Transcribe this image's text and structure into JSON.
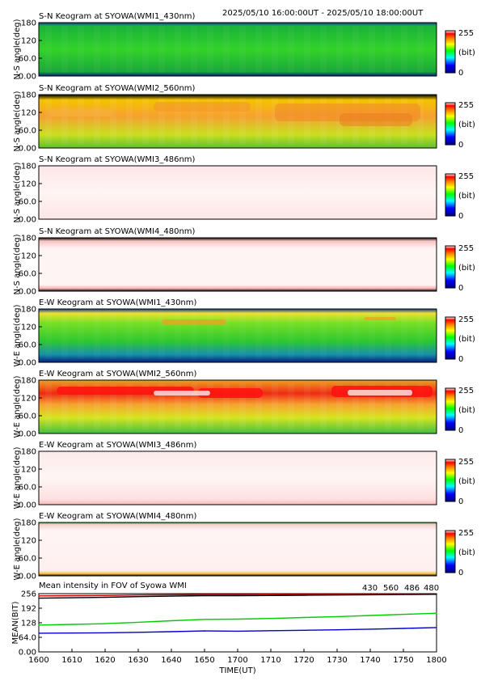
{
  "header": {
    "time_range": "2025/05/10 16:00:00UT - 2025/05/10 18:00:00UT"
  },
  "colors": {
    "line_430": "#0000cc",
    "line_560": "#00cc00",
    "line_486": "#cc0000",
    "line_480": "#000000"
  },
  "panels": [
    {
      "title": "S-N Keogram at SYOWA(WMI1_430nm)",
      "ylabel": "N-S angle(deg)",
      "yticks": [
        "180",
        "120",
        "60.0",
        "0.00"
      ],
      "cb_max": "255",
      "cb_unit": "(bit)",
      "cb_min": "0"
    },
    {
      "title": "S-N Keogram at SYOWA(WMI2_560nm)",
      "ylabel": "N-S angle(deg)",
      "yticks": [
        "180",
        "120",
        "60.0",
        "0.00"
      ],
      "cb_max": "255",
      "cb_unit": "(bit)",
      "cb_min": "0"
    },
    {
      "title": "S-N Keogram at SYOWA(WMI3_486nm)",
      "ylabel": "N-S angle(deg)",
      "yticks": [
        "180",
        "120",
        "60.0",
        "0.00"
      ],
      "cb_max": "255",
      "cb_unit": "(bit)",
      "cb_min": "0"
    },
    {
      "title": "S-N Keogram at SYOWA(WMI4_480nm)",
      "ylabel": "N-S angle(deg)",
      "yticks": [
        "180",
        "120",
        "60.0",
        "0.00"
      ],
      "cb_max": "255",
      "cb_unit": "(bit)",
      "cb_min": "0"
    },
    {
      "title": "E-W Keogram at SYOWA(WMI1_430nm)",
      "ylabel": "W-E angle(deg)",
      "yticks": [
        "180",
        "120",
        "60.0",
        "0.00"
      ],
      "cb_max": "255",
      "cb_unit": "(bit)",
      "cb_min": "0"
    },
    {
      "title": "E-W Keogram at SYOWA(WMI2_560nm)",
      "ylabel": "W-E angle(deg)",
      "yticks": [
        "180",
        "120",
        "60.0",
        "0.00"
      ],
      "cb_max": "255",
      "cb_unit": "(bit)",
      "cb_min": "0"
    },
    {
      "title": "E-W Keogram at SYOWA(WMI3_486nm)",
      "ylabel": "W-E angle(deg)",
      "yticks": [
        "180",
        "120",
        "60.0",
        "0.00"
      ],
      "cb_max": "255",
      "cb_unit": "(bit)",
      "cb_min": "0"
    },
    {
      "title": "E-W Keogram at SYOWA(WMI4_480nm)",
      "ylabel": "W-E angle(deg)",
      "yticks": [
        "180",
        "120",
        "60.0",
        "0.00"
      ],
      "cb_max": "255",
      "cb_unit": "(bit)",
      "cb_min": "0"
    }
  ],
  "mean_panel": {
    "title": "Mean intensity in FOV of Syowa WMI",
    "ylabel": "MEAN(BIT)",
    "yticks": [
      "256",
      "192",
      "128",
      "64.0",
      "0.00"
    ],
    "legend": [
      "430",
      "560",
      "486",
      "480"
    ]
  },
  "xaxis": {
    "label": "TIME(UT)",
    "ticks": [
      "1600",
      "1610",
      "1620",
      "1630",
      "1640",
      "1650",
      "1700",
      "1710",
      "1720",
      "1730",
      "1740",
      "1750",
      "1800"
    ]
  },
  "chart_data": [
    {
      "type": "heatmap",
      "title": "S-N Keogram at SYOWA(WMI1_430nm)",
      "x_range": [
        "1600",
        "1800"
      ],
      "ylim": [
        0,
        180
      ],
      "zlim": [
        0,
        255
      ],
      "typical_intensity": 95
    },
    {
      "type": "heatmap",
      "title": "S-N Keogram at SYOWA(WMI2_560nm)",
      "x_range": [
        "1600",
        "1800"
      ],
      "ylim": [
        0,
        180
      ],
      "zlim": [
        0,
        255
      ],
      "typical_intensity": 175
    },
    {
      "type": "heatmap",
      "title": "S-N Keogram at SYOWA(WMI3_486nm)",
      "x_range": [
        "1600",
        "1800"
      ],
      "ylim": [
        0,
        180
      ],
      "zlim": [
        0,
        255
      ],
      "typical_intensity": 250
    },
    {
      "type": "heatmap",
      "title": "S-N Keogram at SYOWA(WMI4_480nm)",
      "x_range": [
        "1600",
        "1800"
      ],
      "ylim": [
        0,
        180
      ],
      "zlim": [
        0,
        255
      ],
      "typical_intensity": 252
    },
    {
      "type": "heatmap",
      "title": "E-W Keogram at SYOWA(WMI1_430nm)",
      "x_range": [
        "1600",
        "1800"
      ],
      "ylim": [
        0,
        180
      ],
      "zlim": [
        0,
        255
      ],
      "typical_intensity": 100
    },
    {
      "type": "heatmap",
      "title": "E-W Keogram at SYOWA(WMI2_560nm)",
      "x_range": [
        "1600",
        "1800"
      ],
      "ylim": [
        0,
        180
      ],
      "zlim": [
        0,
        255
      ],
      "typical_intensity": 185
    },
    {
      "type": "heatmap",
      "title": "E-W Keogram at SYOWA(WMI3_486nm)",
      "x_range": [
        "1600",
        "1800"
      ],
      "ylim": [
        0,
        180
      ],
      "zlim": [
        0,
        255
      ],
      "typical_intensity": 250
    },
    {
      "type": "heatmap",
      "title": "E-W Keogram at SYOWA(WMI4_480nm)",
      "x_range": [
        "1600",
        "1800"
      ],
      "ylim": [
        0,
        180
      ],
      "zlim": [
        0,
        255
      ],
      "typical_intensity": 252
    },
    {
      "type": "line",
      "title": "Mean intensity in FOV of Syowa WMI",
      "xlabel": "TIME(UT)",
      "ylabel": "MEAN(BIT)",
      "ylim": [
        0,
        256
      ],
      "x": [
        1600,
        1610,
        1620,
        1630,
        1640,
        1650,
        1700,
        1710,
        1720,
        1730,
        1740,
        1750,
        1800
      ],
      "series": [
        {
          "name": "430",
          "color": "#0000cc",
          "values": [
            82,
            83,
            84,
            86,
            89,
            92,
            91,
            93,
            95,
            97,
            100,
            103,
            107
          ]
        },
        {
          "name": "560",
          "color": "#00cc00",
          "values": [
            118,
            121,
            124,
            130,
            137,
            143,
            144,
            147,
            151,
            155,
            160,
            165,
            170
          ]
        },
        {
          "name": "486",
          "color": "#cc0000",
          "values": [
            246,
            247,
            248,
            250,
            251,
            252,
            252,
            253,
            253,
            253,
            253,
            254,
            254
          ]
        },
        {
          "name": "480",
          "color": "#000000",
          "values": [
            236,
            238,
            240,
            243,
            245,
            247,
            247,
            248,
            249,
            250,
            251,
            252,
            253
          ]
        }
      ]
    }
  ]
}
